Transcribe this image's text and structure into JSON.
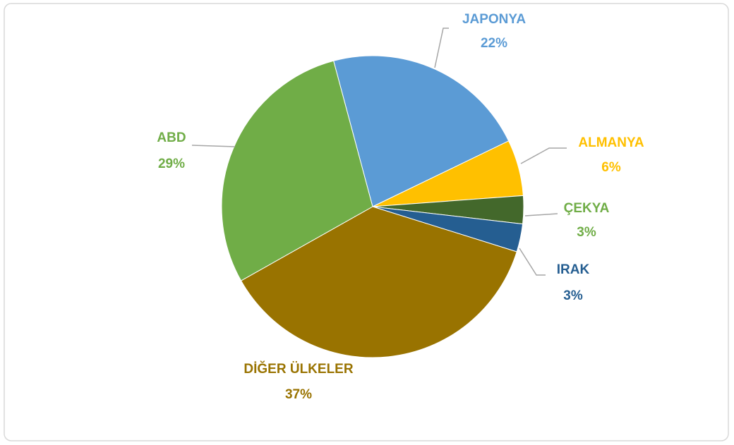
{
  "chart_data": {
    "type": "pie",
    "categories": [
      "JAPONYA",
      "ALMANYA",
      "ÇEKYA",
      "IRAK",
      "DİĞER ÜLKELER",
      "ABD"
    ],
    "values": [
      22,
      6,
      3,
      3,
      37,
      29
    ],
    "value_labels": [
      "22%",
      "6%",
      "3%",
      "3%",
      "37%",
      "29%"
    ],
    "colors": [
      "#5b9bd5",
      "#ffc000",
      "#43682b",
      "#255e91",
      "#997300",
      "#70ad47"
    ],
    "label_colors": [
      "#5b9bd5",
      "#ffc000",
      "#70ad47",
      "#255e91",
      "#997300",
      "#70ad47"
    ]
  }
}
